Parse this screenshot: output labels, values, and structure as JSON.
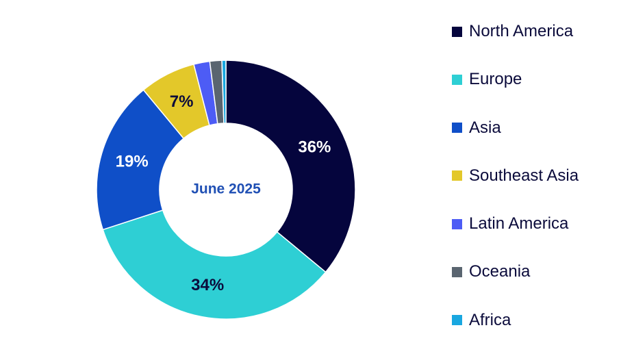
{
  "chart_data": {
    "type": "pie",
    "donut": true,
    "center_label": "June 2025",
    "center_label_color": "#1f4fb4",
    "categories": [
      "North America",
      "Europe",
      "Asia",
      "Southeast Asia",
      "Latin America",
      "Oceania",
      "Africa"
    ],
    "values": [
      36,
      34,
      19,
      7,
      2,
      1.5,
      0.5
    ],
    "data_labels": [
      "36%",
      "34%",
      "19%",
      "7%",
      "",
      "",
      ""
    ],
    "colors": [
      "#05053d",
      "#2ecfd4",
      "#0f4fc8",
      "#e3c82a",
      "#4d5cf5",
      "#5a6570",
      "#19a7e0"
    ],
    "label_colors": [
      "#ffffff",
      "#0b0b3b",
      "#ffffff",
      "#0b0b3b",
      "",
      "",
      ""
    ],
    "legend_position": "right",
    "title": ""
  }
}
